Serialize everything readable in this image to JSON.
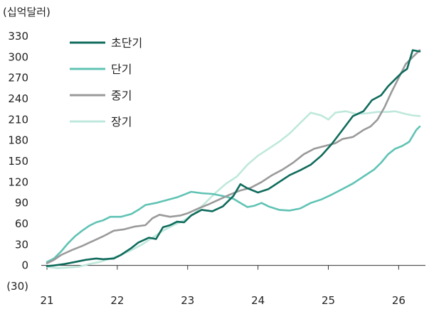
{
  "chart_data": {
    "type": "line",
    "unit_label": "(십억달러)",
    "ylim": [
      -30,
      330
    ],
    "yticks": [
      -30,
      0,
      30,
      60,
      90,
      120,
      150,
      180,
      210,
      240,
      270,
      300,
      330
    ],
    "ytick_labels": [
      "(30)",
      "0",
      "30",
      "60",
      "90",
      "120",
      "150",
      "180",
      "210",
      "240",
      "270",
      "300",
      "330"
    ],
    "xlim": [
      21,
      26.33
    ],
    "xticks": [
      21,
      22,
      23,
      24,
      25,
      26
    ],
    "xtick_labels": [
      "21",
      "22",
      "23",
      "24",
      "25",
      "26"
    ],
    "grid": false,
    "legend_position": "top-left",
    "series": [
      {
        "name": "초단기",
        "color": "#0f6b5c",
        "points": [
          [
            21.0,
            -1
          ],
          [
            21.1,
            0
          ],
          [
            21.25,
            2
          ],
          [
            21.4,
            5
          ],
          [
            21.55,
            8
          ],
          [
            21.7,
            10
          ],
          [
            21.8,
            9
          ],
          [
            21.95,
            10
          ],
          [
            22.05,
            15
          ],
          [
            22.2,
            25
          ],
          [
            22.3,
            33
          ],
          [
            22.45,
            40
          ],
          [
            22.55,
            38
          ],
          [
            22.65,
            55
          ],
          [
            22.75,
            58
          ],
          [
            22.85,
            63
          ],
          [
            22.95,
            62
          ],
          [
            23.05,
            72
          ],
          [
            23.2,
            80
          ],
          [
            23.35,
            78
          ],
          [
            23.5,
            85
          ],
          [
            23.65,
            100
          ],
          [
            23.75,
            117
          ],
          [
            23.85,
            111
          ],
          [
            24.0,
            105
          ],
          [
            24.15,
            110
          ],
          [
            24.3,
            120
          ],
          [
            24.45,
            130
          ],
          [
            24.6,
            137
          ],
          [
            24.75,
            145
          ],
          [
            24.9,
            158
          ],
          [
            25.05,
            175
          ],
          [
            25.2,
            195
          ],
          [
            25.35,
            215
          ],
          [
            25.5,
            222
          ],
          [
            25.62,
            238
          ],
          [
            25.75,
            245
          ],
          [
            25.85,
            258
          ],
          [
            25.95,
            268
          ],
          [
            26.05,
            278
          ],
          [
            26.12,
            283
          ],
          [
            26.2,
            310
          ],
          [
            26.3,
            308
          ]
        ]
      },
      {
        "name": "단기",
        "color": "#5fc3b4",
        "points": [
          [
            21.0,
            5
          ],
          [
            21.1,
            10
          ],
          [
            21.2,
            20
          ],
          [
            21.3,
            32
          ],
          [
            21.4,
            42
          ],
          [
            21.5,
            50
          ],
          [
            21.6,
            57
          ],
          [
            21.7,
            62
          ],
          [
            21.8,
            65
          ],
          [
            21.9,
            70
          ],
          [
            22.05,
            70
          ],
          [
            22.2,
            74
          ],
          [
            22.3,
            80
          ],
          [
            22.4,
            87
          ],
          [
            22.55,
            90
          ],
          [
            22.7,
            94
          ],
          [
            22.85,
            98
          ],
          [
            22.95,
            102
          ],
          [
            23.05,
            106
          ],
          [
            23.2,
            104
          ],
          [
            23.35,
            103
          ],
          [
            23.5,
            100
          ],
          [
            23.65,
            96
          ],
          [
            23.75,
            90
          ],
          [
            23.85,
            84
          ],
          [
            23.95,
            86
          ],
          [
            24.05,
            90
          ],
          [
            24.15,
            85
          ],
          [
            24.3,
            80
          ],
          [
            24.45,
            79
          ],
          [
            24.6,
            82
          ],
          [
            24.75,
            90
          ],
          [
            24.9,
            95
          ],
          [
            25.05,
            102
          ],
          [
            25.2,
            110
          ],
          [
            25.35,
            118
          ],
          [
            25.5,
            128
          ],
          [
            25.65,
            138
          ],
          [
            25.75,
            148
          ],
          [
            25.85,
            160
          ],
          [
            25.95,
            168
          ],
          [
            26.05,
            172
          ],
          [
            26.15,
            178
          ],
          [
            26.25,
            195
          ],
          [
            26.3,
            200
          ]
        ]
      },
      {
        "name": "중기",
        "color": "#9a9a9a",
        "points": [
          [
            21.0,
            3
          ],
          [
            21.1,
            8
          ],
          [
            21.2,
            15
          ],
          [
            21.35,
            22
          ],
          [
            21.5,
            28
          ],
          [
            21.65,
            35
          ],
          [
            21.8,
            42
          ],
          [
            21.95,
            50
          ],
          [
            22.1,
            52
          ],
          [
            22.25,
            56
          ],
          [
            22.4,
            58
          ],
          [
            22.5,
            68
          ],
          [
            22.6,
            73
          ],
          [
            22.75,
            70
          ],
          [
            22.9,
            72
          ],
          [
            23.0,
            75
          ],
          [
            23.15,
            82
          ],
          [
            23.3,
            88
          ],
          [
            23.45,
            95
          ],
          [
            23.6,
            102
          ],
          [
            23.75,
            108
          ],
          [
            23.9,
            112
          ],
          [
            24.05,
            120
          ],
          [
            24.2,
            130
          ],
          [
            24.35,
            138
          ],
          [
            24.5,
            148
          ],
          [
            24.65,
            160
          ],
          [
            24.8,
            168
          ],
          [
            24.95,
            172
          ],
          [
            25.1,
            176
          ],
          [
            25.2,
            182
          ],
          [
            25.35,
            185
          ],
          [
            25.5,
            195
          ],
          [
            25.6,
            200
          ],
          [
            25.7,
            210
          ],
          [
            25.8,
            228
          ],
          [
            25.9,
            250
          ],
          [
            26.0,
            270
          ],
          [
            26.1,
            290
          ],
          [
            26.2,
            300
          ],
          [
            26.3,
            310
          ]
        ]
      },
      {
        "name": "장기",
        "color": "#bfe8dc",
        "points": [
          [
            21.0,
            -2
          ],
          [
            21.15,
            -4
          ],
          [
            21.3,
            -3
          ],
          [
            21.45,
            -2
          ],
          [
            21.6,
            2
          ],
          [
            21.75,
            5
          ],
          [
            21.9,
            10
          ],
          [
            22.05,
            15
          ],
          [
            22.2,
            22
          ],
          [
            22.35,
            30
          ],
          [
            22.5,
            40
          ],
          [
            22.65,
            50
          ],
          [
            22.8,
            58
          ],
          [
            22.95,
            65
          ],
          [
            23.1,
            75
          ],
          [
            23.25,
            90
          ],
          [
            23.4,
            105
          ],
          [
            23.55,
            118
          ],
          [
            23.7,
            128
          ],
          [
            23.85,
            145
          ],
          [
            24.0,
            158
          ],
          [
            24.15,
            168
          ],
          [
            24.3,
            178
          ],
          [
            24.45,
            190
          ],
          [
            24.6,
            205
          ],
          [
            24.75,
            220
          ],
          [
            24.9,
            216
          ],
          [
            25.0,
            210
          ],
          [
            25.1,
            220
          ],
          [
            25.25,
            222
          ],
          [
            25.4,
            218
          ],
          [
            25.55,
            219
          ],
          [
            25.7,
            221
          ],
          [
            25.85,
            221
          ],
          [
            25.95,
            222
          ],
          [
            26.1,
            218
          ],
          [
            26.2,
            216
          ],
          [
            26.3,
            215
          ]
        ]
      }
    ]
  }
}
